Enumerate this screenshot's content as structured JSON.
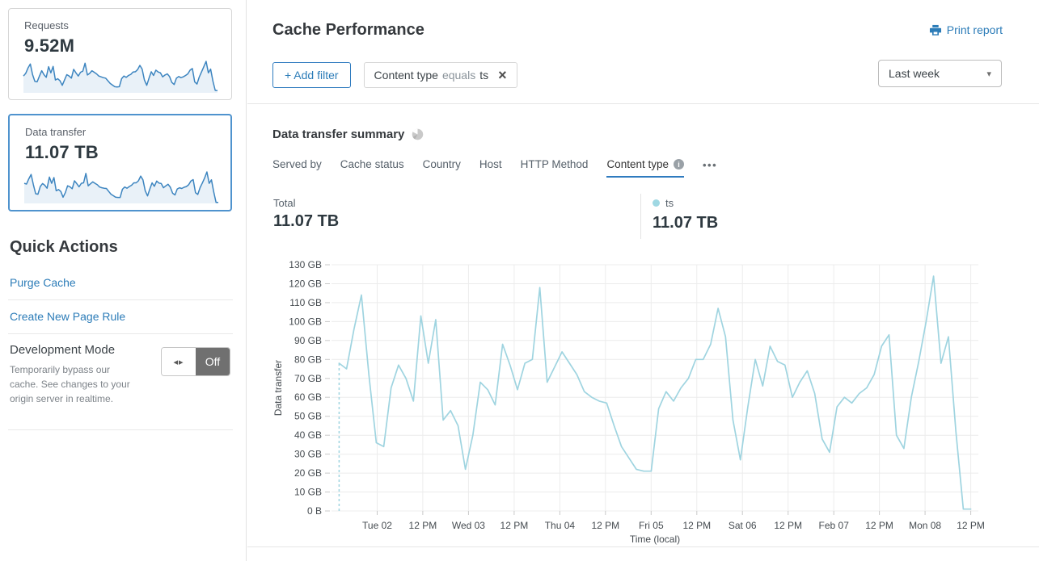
{
  "sidebar": {
    "cards": [
      {
        "label": "Requests",
        "value": "9.52M",
        "selected": false,
        "sparkline": [
          60,
          70,
          90,
          105,
          65,
          40,
          38,
          60,
          80,
          65,
          55,
          95,
          72,
          96,
          45,
          50,
          42,
          25,
          45,
          65,
          60,
          52,
          85,
          72,
          60,
          74,
          78,
          108,
          64,
          70,
          80,
          74,
          68,
          60,
          57,
          54,
          52,
          42,
          32,
          26,
          20,
          19,
          20,
          50,
          60,
          55,
          62,
          66,
          75,
          76,
          84,
          100,
          86,
          45,
          25,
          52,
          76,
          62,
          82,
          75,
          72,
          57,
          64,
          68,
          58,
          36,
          28,
          52,
          58,
          54,
          57,
          62,
          68,
          82,
          88,
          38,
          30,
          56,
          75,
          95,
          115,
          72,
          86,
          40,
          6,
          5
        ]
      },
      {
        "label": "Data transfer",
        "value": "11.07 TB",
        "selected": true,
        "sparkline": [
          78,
          75,
          96,
          114,
          72,
          36,
          34,
          65,
          77,
          70,
          58,
          103,
          78,
          101,
          48,
          53,
          45,
          22,
          40,
          68,
          64,
          56,
          88,
          77,
          64,
          78,
          80,
          118,
          68,
          76,
          84,
          78,
          72,
          63,
          60,
          58,
          57,
          45,
          34,
          28,
          22,
          21,
          21,
          54,
          63,
          58,
          65,
          70,
          80,
          80,
          88,
          107,
          92,
          48,
          27,
          55,
          80,
          66,
          87,
          79,
          77,
          60,
          68,
          74,
          62,
          38,
          31,
          55,
          60,
          57,
          62,
          65,
          72,
          87,
          93,
          40,
          33,
          60,
          79,
          100,
          124,
          78,
          92,
          42,
          1,
          1
        ]
      }
    ],
    "quick_actions": {
      "title": "Quick Actions",
      "links": [
        {
          "label": "Purge Cache"
        },
        {
          "label": "Create New Page Rule"
        }
      ],
      "dev_mode": {
        "title": "Development Mode",
        "description": "Temporarily bypass our cache. See changes to your origin server in realtime.",
        "toggle_state": "Off",
        "toggle_icon": "left-right-arrows",
        "toggle_arrows": "◂▸"
      }
    }
  },
  "header": {
    "title": "Cache Performance",
    "print_label": "Print report"
  },
  "filters": {
    "add_button_label": "+ Add filter",
    "chip": {
      "field": "Content type",
      "operator": "equals",
      "value": "ts",
      "close_glyph": "×"
    },
    "range_select": {
      "value": "Last week",
      "caret_glyph": "▾"
    }
  },
  "summary": {
    "title": "Data transfer summary",
    "tabs": [
      {
        "label": "Served by",
        "active": false
      },
      {
        "label": "Cache status",
        "active": false
      },
      {
        "label": "Country",
        "active": false
      },
      {
        "label": "Host",
        "active": false
      },
      {
        "label": "HTTP Method",
        "active": false
      },
      {
        "label": "Content type",
        "active": true,
        "info_icon": true
      }
    ],
    "more_glyph": "•••",
    "total_label": "Total",
    "total_value": "11.07 TB",
    "legend": {
      "name": "ts",
      "value": "11.07 TB"
    }
  },
  "chart_data": {
    "type": "line",
    "title": "Data transfer by content type over last week",
    "xlabel": "Time (local)",
    "ylabel": "Data transfer",
    "unit": "GB",
    "ylim": [
      0,
      130
    ],
    "y_ticks": [
      "0 B",
      "10 GB",
      "20 GB",
      "30 GB",
      "40 GB",
      "50 GB",
      "60 GB",
      "70 GB",
      "80 GB",
      "90 GB",
      "100 GB",
      "110 GB",
      "120 GB",
      "130 GB"
    ],
    "x_ticks": [
      "Tue 02",
      "12 PM",
      "Wed 03",
      "12 PM",
      "Thu 04",
      "12 PM",
      "Fri 05",
      "12 PM",
      "Sat 06",
      "12 PM",
      "Feb 07",
      "12 PM",
      "Mon 08",
      "12 PM"
    ],
    "x_tick_start_hour": 12,
    "x_tick_interval_hours": 12,
    "hours_span": 170,
    "grid": true,
    "legend_position": "above-right",
    "start_marker": "dashed-vertical-line-at-first-point",
    "series": [
      {
        "name": "ts",
        "color": "#9fd4e0",
        "first_point_hour": 2,
        "values_gb": [
          78,
          75,
          96,
          114,
          72,
          36,
          34,
          65,
          77,
          70,
          58,
          103,
          78,
          101,
          48,
          53,
          45,
          22,
          40,
          68,
          64,
          56,
          88,
          77,
          64,
          78,
          80,
          118,
          68,
          76,
          84,
          78,
          72,
          63,
          60,
          58,
          57,
          45,
          34,
          28,
          22,
          21,
          21,
          54,
          63,
          58,
          65,
          70,
          80,
          80,
          88,
          107,
          92,
          48,
          27,
          55,
          80,
          66,
          87,
          79,
          77,
          60,
          68,
          74,
          62,
          38,
          31,
          55,
          60,
          57,
          62,
          65,
          72,
          87,
          93,
          40,
          33,
          60,
          79,
          100,
          124,
          78,
          92,
          42,
          1,
          1
        ]
      }
    ]
  },
  "colors": {
    "accent_blue": "#2c7cb8",
    "tab_underline": "#2f7bbf",
    "chart_line": "#9fd4e0",
    "legend_dot": "#9fd8e3",
    "spark_line": "#3d85c0",
    "spark_fill": "#e9f1f8",
    "selected_card_border": "#4f93ce",
    "toggle_off_bg": "#707070"
  }
}
